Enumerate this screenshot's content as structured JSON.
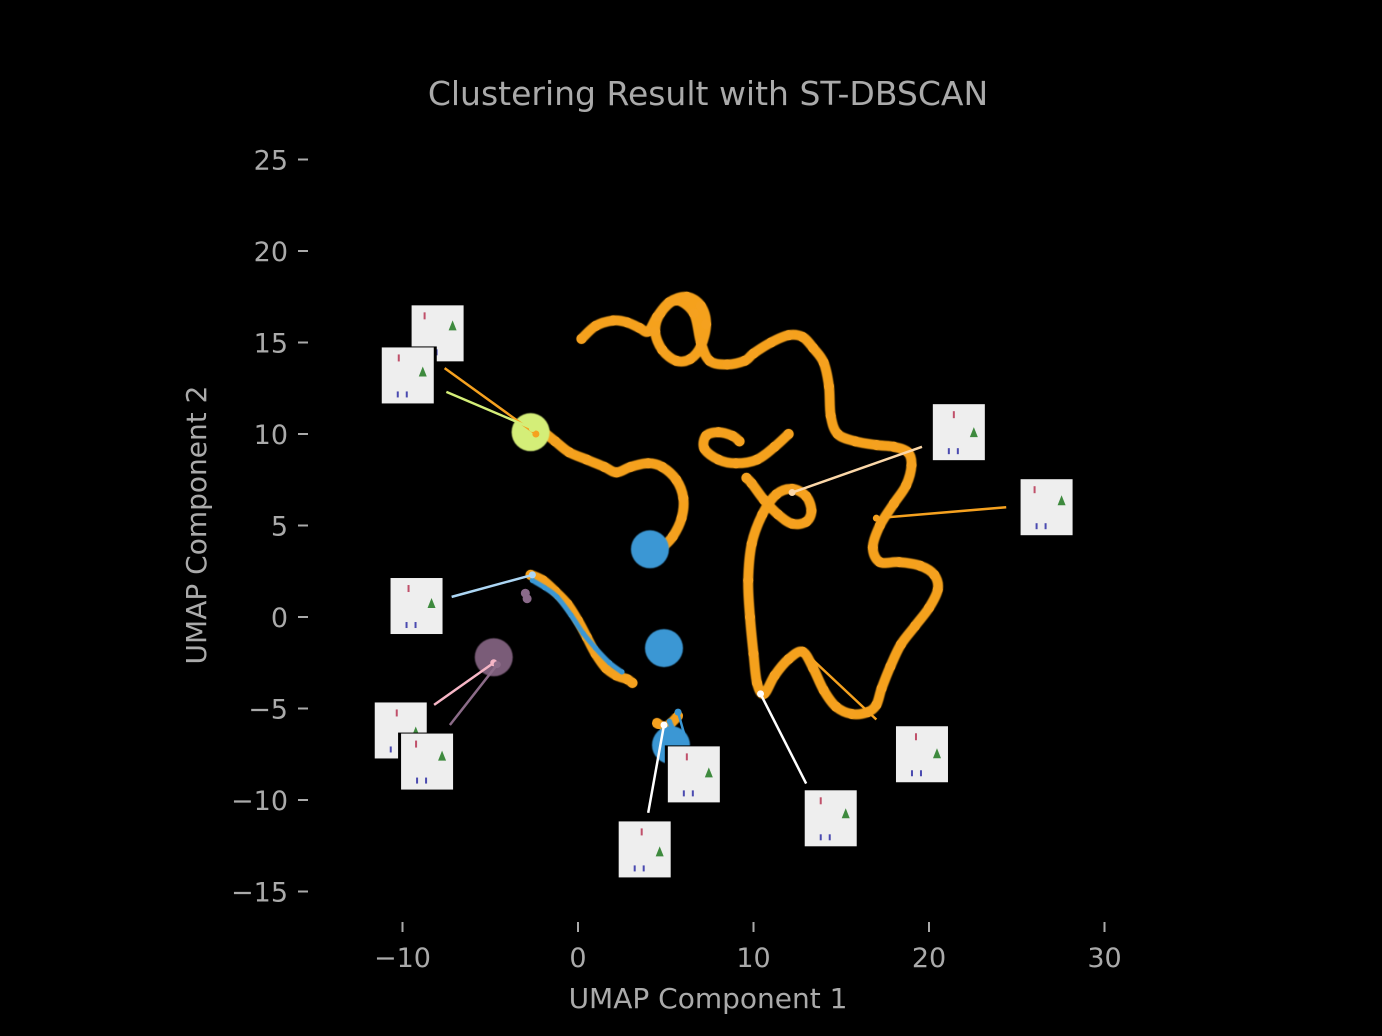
{
  "chart_data": {
    "type": "scatter",
    "title": "Clustering Result with ST-DBSCAN",
    "xlabel": "UMAP Component 1",
    "ylabel": "UMAP Component 2",
    "xlim": [
      -12.5,
      32
    ],
    "ylim": [
      -17,
      27
    ],
    "xticks": [
      -10,
      0,
      10,
      20,
      30
    ],
    "yticks": [
      -15,
      -10,
      -5,
      0,
      5,
      10,
      15,
      20,
      25
    ],
    "x_tick_labels": [
      "−10",
      "0",
      "10",
      "20",
      "30"
    ],
    "y_tick_labels": [
      "−15",
      "−10",
      "−5",
      "0",
      "5",
      "10",
      "15",
      "20",
      "25"
    ],
    "grid": false,
    "legend": "none",
    "background": "#000000",
    "text_color": "#aaaaaa",
    "series": [
      {
        "color": "#f5a11f",
        "style": "trajectory",
        "points": [
          [
            0.2,
            15.2
          ],
          [
            1.0,
            15.9
          ],
          [
            2.0,
            16.2
          ],
          [
            2.8,
            16.1
          ],
          [
            3.5,
            15.8
          ],
          [
            4.0,
            15.6
          ],
          [
            4.5,
            16.4
          ],
          [
            5.2,
            17.2
          ],
          [
            6.2,
            17.5
          ],
          [
            7.0,
            17.0
          ],
          [
            7.3,
            16.0
          ],
          [
            7.0,
            14.8
          ],
          [
            6.4,
            14.1
          ],
          [
            5.6,
            14.0
          ],
          [
            4.8,
            14.6
          ],
          [
            4.4,
            15.6
          ],
          [
            4.7,
            16.6
          ],
          [
            5.6,
            17.3
          ],
          [
            6.6,
            16.6
          ],
          [
            7.0,
            15.0
          ],
          [
            7.5,
            14.0
          ],
          [
            8.5,
            13.8
          ],
          [
            9.5,
            14.0
          ],
          [
            10.0,
            14.4
          ],
          [
            11.0,
            15.0
          ],
          [
            12.0,
            15.4
          ],
          [
            12.8,
            15.3
          ],
          [
            13.4,
            14.7
          ],
          [
            14.0,
            13.9
          ],
          [
            14.3,
            12.6
          ],
          [
            14.4,
            11.0
          ],
          [
            14.8,
            10.0
          ],
          [
            15.8,
            9.6
          ],
          [
            17.0,
            9.4
          ],
          [
            18.0,
            9.3
          ],
          [
            18.8,
            9.0
          ],
          [
            19.0,
            8.3
          ],
          [
            18.7,
            7.2
          ],
          [
            18.0,
            6.2
          ],
          [
            17.2,
            5.0
          ],
          [
            16.8,
            3.8
          ],
          [
            17.2,
            3.0
          ],
          [
            18.3,
            3.0
          ],
          [
            19.5,
            2.8
          ],
          [
            20.3,
            2.3
          ],
          [
            20.5,
            1.5
          ],
          [
            20.0,
            0.5
          ],
          [
            19.2,
            -0.5
          ],
          [
            18.4,
            -1.5
          ],
          [
            17.8,
            -2.7
          ],
          [
            17.3,
            -3.9
          ],
          [
            17.0,
            -4.8
          ],
          [
            16.5,
            -5.2
          ],
          [
            15.6,
            -5.3
          ],
          [
            14.7,
            -4.9
          ],
          [
            14.0,
            -4.0
          ],
          [
            13.4,
            -2.8
          ],
          [
            12.8,
            -1.9
          ],
          [
            12.0,
            -2.3
          ],
          [
            11.2,
            -3.2
          ],
          [
            10.6,
            -4.2
          ],
          [
            10.2,
            -3.6
          ],
          [
            10.0,
            -2.0
          ],
          [
            9.8,
            0.0
          ],
          [
            9.7,
            2.0
          ],
          [
            9.9,
            4.0
          ],
          [
            10.5,
            5.6
          ],
          [
            11.3,
            6.7
          ],
          [
            12.2,
            7.0
          ],
          [
            13.0,
            6.6
          ],
          [
            13.3,
            5.8
          ],
          [
            13.0,
            5.2
          ],
          [
            12.2,
            5.1
          ],
          [
            11.4,
            5.6
          ],
          [
            10.6,
            6.4
          ],
          [
            9.9,
            7.3
          ],
          [
            9.6,
            7.6
          ]
        ]
      },
      {
        "color": "#f5a11f",
        "style": "trajectory",
        "points": [
          [
            12.0,
            10.0
          ],
          [
            11.2,
            9.3
          ],
          [
            10.2,
            8.6
          ],
          [
            9.0,
            8.4
          ],
          [
            8.0,
            8.6
          ],
          [
            7.2,
            9.2
          ],
          [
            7.3,
            9.9
          ],
          [
            8.0,
            10.1
          ],
          [
            8.8,
            9.9
          ],
          [
            9.2,
            9.6
          ]
        ]
      },
      {
        "color": "#f5a11f",
        "style": "trajectory",
        "points": [
          [
            -2.2,
            10.3
          ],
          [
            -1.3,
            9.6
          ],
          [
            -0.5,
            9.0
          ],
          [
            0.5,
            8.6
          ],
          [
            1.5,
            8.2
          ],
          [
            2.2,
            7.9
          ],
          [
            3.0,
            8.2
          ],
          [
            4.0,
            8.4
          ],
          [
            4.8,
            8.2
          ],
          [
            5.6,
            7.5
          ],
          [
            6.0,
            6.5
          ],
          [
            5.9,
            5.4
          ],
          [
            5.4,
            4.4
          ],
          [
            4.8,
            3.8
          ],
          [
            4.4,
            3.5
          ]
        ]
      },
      {
        "color": "#f5a11f",
        "style": "trajectory",
        "points": [
          [
            -2.7,
            2.3
          ],
          [
            -2.0,
            2.0
          ],
          [
            -1.3,
            1.4
          ],
          [
            -0.6,
            0.7
          ],
          [
            0.0,
            -0.2
          ],
          [
            0.5,
            -1.1
          ],
          [
            1.0,
            -2.0
          ],
          [
            1.6,
            -2.8
          ],
          [
            2.2,
            -3.2
          ],
          [
            2.8,
            -3.4
          ],
          [
            3.1,
            -3.6
          ]
        ]
      },
      {
        "color": "#f5a11f",
        "style": "trajectory",
        "points": [
          [
            4.5,
            -5.8
          ],
          [
            4.9,
            -6.0
          ],
          [
            5.3,
            -5.8
          ],
          [
            5.7,
            -5.4
          ]
        ]
      },
      {
        "color": "#3a97d4",
        "style": "trajectory",
        "points": [
          [
            -2.6,
            2.0
          ],
          [
            -1.9,
            1.6
          ],
          [
            -1.2,
            1.1
          ],
          [
            -0.4,
            0.1
          ],
          [
            0.3,
            -0.9
          ],
          [
            1.0,
            -1.7
          ],
          [
            1.8,
            -2.5
          ],
          [
            2.5,
            -3.0
          ]
        ]
      },
      {
        "color": "#3a97d4",
        "style": "trajectory",
        "points": [
          [
            5.2,
            -5.7
          ],
          [
            5.5,
            -6.4
          ],
          [
            5.6,
            -7.2
          ],
          [
            5.3,
            -7.5
          ]
        ]
      },
      {
        "color": "#3a97d4",
        "style": "blob",
        "points": [
          [
            4.1,
            3.7
          ],
          [
            4.9,
            -1.7
          ],
          [
            5.3,
            -7.0
          ]
        ]
      },
      {
        "color": "#d4ee78",
        "style": "blob",
        "points": [
          [
            -2.7,
            10.1
          ]
        ]
      },
      {
        "color": "#7a5c78",
        "style": "blob",
        "points": [
          [
            -4.8,
            -2.2
          ]
        ]
      },
      {
        "color": "#8a6a8a",
        "style": "scatter",
        "points": [
          [
            -3.0,
            1.3
          ],
          [
            -2.9,
            1.0
          ]
        ]
      }
    ],
    "annotations": [
      {
        "from": [
          -7.6,
          13.6
        ],
        "to": [
          -2.4,
          10.0
        ],
        "color": "#f5a11f",
        "thumb_center": [
          -8.0,
          15.5
        ]
      },
      {
        "from": [
          -7.5,
          12.3
        ],
        "to": [
          -2.6,
          10.3
        ],
        "color": "#d4ee78",
        "thumb_center": [
          -9.7,
          13.2
        ]
      },
      {
        "from": [
          19.6,
          9.3
        ],
        "to": [
          12.2,
          6.8
        ],
        "color": "#fbd7a8",
        "thumb_center": [
          21.7,
          10.1
        ]
      },
      {
        "from": [
          24.4,
          6.0
        ],
        "to": [
          17.0,
          5.4
        ],
        "color": "#f5a11f",
        "thumb_center": [
          26.7,
          6.0
        ]
      },
      {
        "from": [
          -7.2,
          1.1
        ],
        "to": [
          -2.6,
          2.3
        ],
        "color": "#acd6f4",
        "thumb_center": [
          -9.2,
          0.6
        ]
      },
      {
        "from": [
          -8.2,
          -4.8
        ],
        "to": [
          -4.8,
          -2.5
        ],
        "color": "#f6b6c6",
        "thumb_center": [
          -10.1,
          -6.2
        ]
      },
      {
        "from": [
          -7.3,
          -5.9
        ],
        "to": [
          -4.6,
          -2.6
        ],
        "color": "#8b6b88",
        "thumb_center": [
          -8.6,
          -7.9
        ]
      },
      {
        "from": [
          6.2,
          -6.9
        ],
        "to": [
          5.7,
          -5.2
        ],
        "color": "#3a97d4",
        "thumb_center": [
          6.6,
          -8.6
        ]
      },
      {
        "from": [
          4.0,
          -10.7
        ],
        "to": [
          4.9,
          -5.9
        ],
        "color": "#ffffff",
        "thumb_center": [
          3.8,
          -12.7
        ]
      },
      {
        "from": [
          13.0,
          -9.1
        ],
        "to": [
          10.4,
          -4.2
        ],
        "color": "#ffffff",
        "thumb_center": [
          14.4,
          -11.0
        ]
      },
      {
        "from": [
          17.0,
          -5.6
        ],
        "to": [
          13.0,
          -2.0
        ],
        "color": "#f5a11f",
        "thumb_center": [
          19.6,
          -7.5
        ]
      }
    ]
  }
}
